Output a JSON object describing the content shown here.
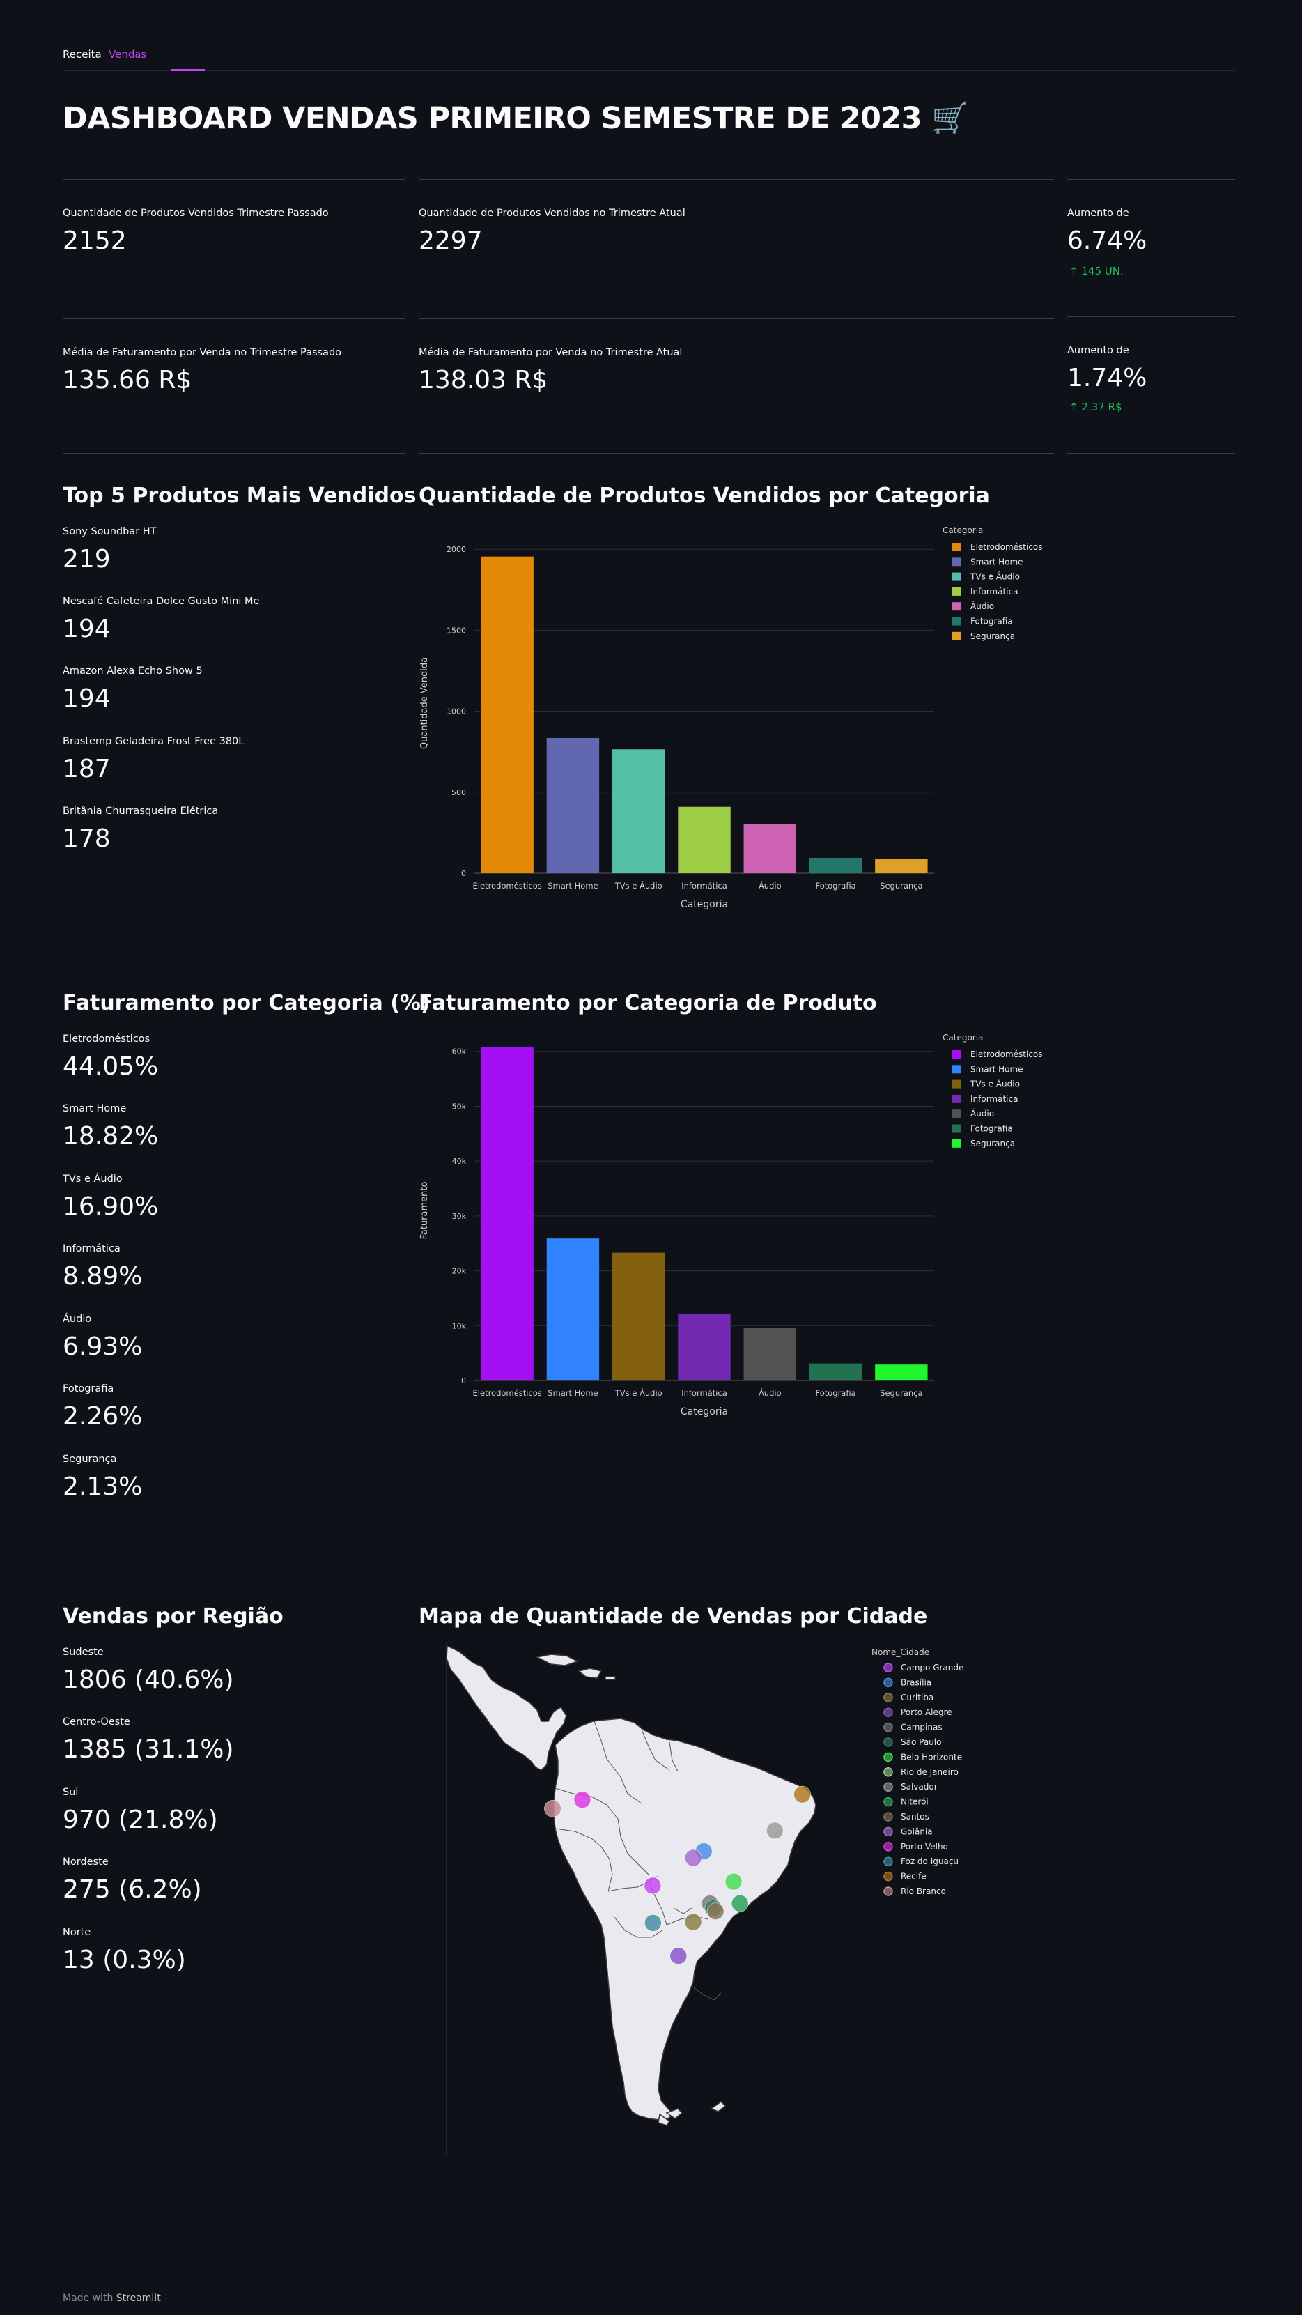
{
  "tabs": [
    "Receita",
    "Vendas"
  ],
  "title": "DASHBOARD VENDAS PRIMEIRO SEMESTRE DE 2023",
  "title_emoji": "🛒",
  "metrics": {
    "qty_prev_label": "Quantidade de Produtos Vendidos Trimestre Passado",
    "qty_prev_value": "2152",
    "qty_curr_label": "Quantidade de Produtos Vendidos no Trimestre Atual",
    "qty_curr_value": "2297",
    "qty_inc_label": "Aumento de",
    "qty_inc_value": "6.74%",
    "qty_inc_delta": "145 UN.",
    "avg_prev_label": "Média de Faturamento por Venda no Trimestre Passado",
    "avg_prev_value": "135.66 R$",
    "avg_curr_label": "Média de Faturamento por Venda no Trimestre Atual",
    "avg_curr_value": "138.03 R$",
    "avg_inc_label": "Aumento de",
    "avg_inc_value": "1.74%",
    "avg_inc_delta": "2.37 R$",
    "delta_arrow": "↑"
  },
  "top5": {
    "heading": "Top 5 Produtos Mais Vendidos",
    "items": [
      {
        "label": "Sony Soundbar HT",
        "value": "219"
      },
      {
        "label": "Nescafé Cafeteira Dolce Gusto Mini Me",
        "value": "194"
      },
      {
        "label": "Amazon Alexa Echo Show 5",
        "value": "194"
      },
      {
        "label": "Brastemp Geladeira Frost Free 380L",
        "value": "187"
      },
      {
        "label": "Britânia Churrasqueira Elétrica",
        "value": "178"
      }
    ]
  },
  "fat_pct": {
    "heading": "Faturamento por Categoria (%)",
    "items": [
      {
        "label": "Eletrodomésticos",
        "value": "44.05%"
      },
      {
        "label": "Smart Home",
        "value": "18.82%"
      },
      {
        "label": "TVs e Áudio",
        "value": "16.90%"
      },
      {
        "label": "Informática",
        "value": "8.89%"
      },
      {
        "label": "Áudio",
        "value": "6.93%"
      },
      {
        "label": "Fotografia",
        "value": "2.26%"
      },
      {
        "label": "Segurança",
        "value": "2.13%"
      }
    ]
  },
  "regions": {
    "heading": "Vendas por Região",
    "items": [
      {
        "label": "Sudeste",
        "value": "1806 (40.6%)"
      },
      {
        "label": "Centro-Oeste",
        "value": "1385 (31.1%)"
      },
      {
        "label": "Sul",
        "value": "970 (21.8%)"
      },
      {
        "label": "Nordeste",
        "value": "275 (6.2%)"
      },
      {
        "label": "Norte",
        "value": "13 (0.3%)"
      }
    ]
  },
  "chart_data": [
    {
      "type": "bar",
      "title": "Quantidade de Produtos Vendidos por Categoria",
      "xlabel": "Categoria",
      "ylabel": "Quantidade Vendida",
      "legend_title": "Categoria",
      "legend_position": "top-right",
      "grid": true,
      "ylim": [
        0,
        2100
      ],
      "yticks": [
        0,
        500,
        1000,
        1500,
        2000
      ],
      "ytick_labels": [
        "0",
        "500",
        "1000",
        "1500",
        "2000"
      ],
      "categories": [
        "Eletrodomésticos",
        "Smart Home",
        "TVs e Áudio",
        "Informática",
        "Áudio",
        "Fotografia",
        "Segurança"
      ],
      "values": [
        1955,
        835,
        765,
        410,
        305,
        95,
        90
      ],
      "colors": [
        "#e48a07",
        "#6168b0",
        "#53bfa6",
        "#9ccd45",
        "#cf63b3",
        "#24786b",
        "#dea026"
      ]
    },
    {
      "type": "bar",
      "title": "Faturamento por Categoria de Produto",
      "xlabel": "Categoria",
      "ylabel": "Faturamento",
      "legend_title": "Categoria",
      "legend_position": "top-right",
      "grid": true,
      "ylim": [
        0,
        62000
      ],
      "yticks": [
        0,
        10000,
        20000,
        30000,
        40000,
        50000,
        60000
      ],
      "ytick_labels": [
        "0",
        "10k",
        "20k",
        "30k",
        "40k",
        "50k",
        "60k"
      ],
      "categories": [
        "Eletrodomésticos",
        "Smart Home",
        "TVs e Áudio",
        "Informática",
        "Áudio",
        "Fotografia",
        "Segurança"
      ],
      "values": [
        60800,
        25900,
        23300,
        12200,
        9600,
        3100,
        2900
      ],
      "colors": [
        "#a40ff4",
        "#3082fe",
        "#84610f",
        "#7429b3",
        "#535353",
        "#227150",
        "#1ff62d"
      ]
    },
    {
      "type": "scatter_geo",
      "title": "Mapa de Quantidade de Vendas por Cidade",
      "legend_title": "Nome_Cidade",
      "legend_position": "right",
      "region": "South America",
      "cities": [
        {
          "name": "Campo Grande",
          "lat": -20.47,
          "lon": -54.62,
          "color": "#c44cf0"
        },
        {
          "name": "Brasília",
          "lat": -15.79,
          "lon": -47.88,
          "color": "#4f8fe8"
        },
        {
          "name": "Curitiba",
          "lat": -25.43,
          "lon": -49.27,
          "color": "#8e7f4a"
        },
        {
          "name": "Porto Alegre",
          "lat": -30.03,
          "lon": -51.23,
          "color": "#8a59c8"
        },
        {
          "name": "Campinas",
          "lat": -22.91,
          "lon": -47.06,
          "color": "#7d7d7d"
        },
        {
          "name": "São Paulo",
          "lat": -23.55,
          "lon": -46.63,
          "color": "#3c7d66"
        },
        {
          "name": "Belo Horizonte",
          "lat": -19.92,
          "lon": -43.94,
          "color": "#49dd57"
        },
        {
          "name": "Rio de Janeiro",
          "lat": -22.91,
          "lon": -43.17,
          "color": "#9ecf92"
        },
        {
          "name": "Salvador",
          "lat": -12.97,
          "lon": -38.5,
          "color": "#9c9c9c"
        },
        {
          "name": "Niterói",
          "lat": -22.88,
          "lon": -43.1,
          "color": "#3ca66b"
        },
        {
          "name": "Santos",
          "lat": -23.96,
          "lon": -46.33,
          "color": "#8a7458"
        },
        {
          "name": "Goiânia",
          "lat": -16.68,
          "lon": -49.26,
          "color": "#a66fd0"
        },
        {
          "name": "Porto Velho",
          "lat": -8.76,
          "lon": -63.9,
          "color": "#de3ce0"
        },
        {
          "name": "Foz do Iguaçu",
          "lat": -25.55,
          "lon": -54.58,
          "color": "#4a8ea6"
        },
        {
          "name": "Recife",
          "lat": -8.05,
          "lon": -34.88,
          "color": "#b07a26"
        },
        {
          "name": "Rio Branco",
          "lat": -9.97,
          "lon": -67.81,
          "color": "#c98a96"
        }
      ]
    }
  ],
  "footer": {
    "prefix": "Made with",
    "brand": "Streamlit"
  }
}
